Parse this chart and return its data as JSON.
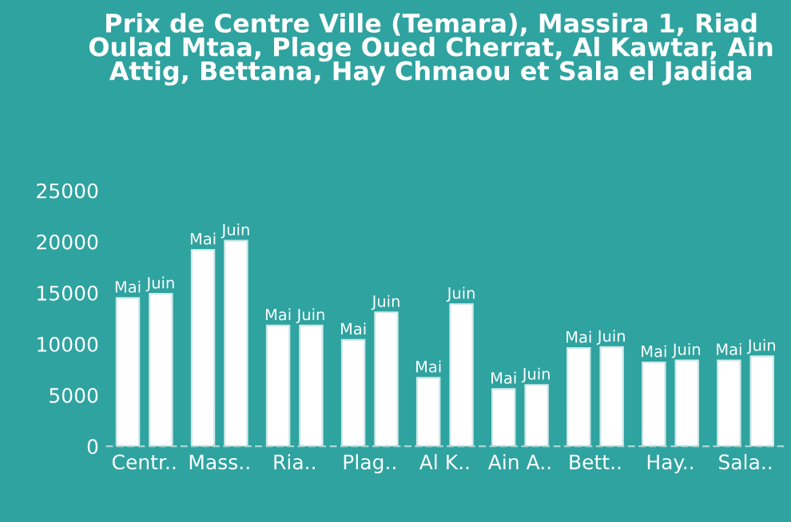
{
  "chart_data": {
    "type": "bar",
    "title": "Prix de Centre Ville (Temara), Massira 1, Riad Oulad Mtaa, Plage Oued Cherrat, Al Kawtar, Ain Attig, Bettana, Hay Chmaou et Sala el Jadida",
    "categories": [
      "Centr..",
      "Mass..",
      "Ria..",
      "Plag..",
      "Al K..",
      "Ain A..",
      "Bett..",
      "Hay..",
      "Sala.."
    ],
    "series": [
      {
        "name": "Mai",
        "color": "#ffffff",
        "values": [
          14500,
          19200,
          11800,
          10400,
          6700,
          5600,
          9600,
          8200,
          8400
        ]
      },
      {
        "name": "Juin",
        "color": "#ffffff",
        "values": [
          14900,
          20100,
          11800,
          13100,
          13900,
          6000,
          9700,
          8400,
          8800
        ]
      }
    ],
    "ylim": [
      0,
      25000
    ],
    "yticks": [
      0,
      5000,
      10000,
      15000,
      20000,
      25000
    ],
    "grid": false,
    "legend": false
  }
}
